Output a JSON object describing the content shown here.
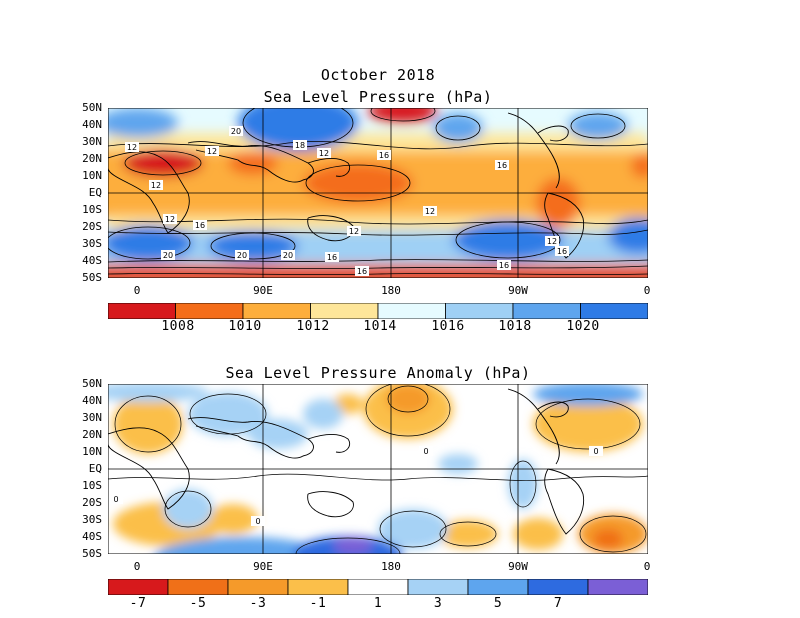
{
  "panel1": {
    "title_line1": "October 2018",
    "title_line2": "Sea Level Pressure (hPa)",
    "contour_labels": [
      "12",
      "20",
      "12",
      "18",
      "12",
      "16",
      "16",
      "12",
      "12",
      "16",
      "12",
      "16",
      "12",
      "20",
      "20",
      "16",
      "16",
      "20",
      "16",
      "12"
    ],
    "colorbar": {
      "labels": [
        "1008",
        "1010",
        "1012",
        "1014",
        "1016",
        "1018",
        "1020"
      ],
      "colors": [
        "#d7191c",
        "#f46d1a",
        "#fdae3c",
        "#fee69a",
        "#e6fbff",
        "#9fd0f5",
        "#5ea5ee",
        "#2e7be6"
      ]
    }
  },
  "panel2": {
    "title": "Sea Level Pressure Anomaly (hPa)",
    "contour_labels": [
      "0",
      "0",
      "0",
      "0"
    ],
    "colorbar": {
      "labels": [
        "-7",
        "-5",
        "-3",
        "-1",
        "1",
        "3",
        "5",
        "7"
      ],
      "colors": [
        "#d7191c",
        "#f07018",
        "#f59a2a",
        "#fbbf4a",
        "#ffffff",
        "#a6d2f5",
        "#5ea5ee",
        "#2e6be0",
        "#7b5fd6"
      ]
    }
  },
  "axes": {
    "lat_labels": [
      "50N",
      "40N",
      "30N",
      "20N",
      "10N",
      "EQ",
      "10S",
      "20S",
      "30S",
      "40S",
      "50S"
    ],
    "lon_labels": [
      "0",
      "90E",
      "180",
      "90W",
      "0"
    ]
  }
}
